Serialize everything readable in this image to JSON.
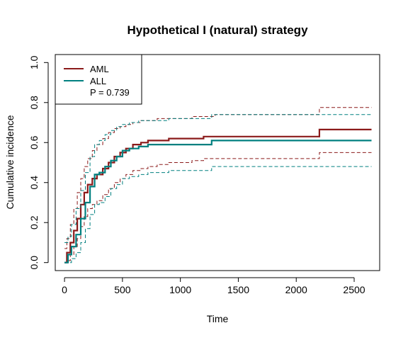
{
  "chart_data": {
    "type": "line",
    "title": "Hypothetical I (natural) strategy",
    "xlabel": "Time",
    "ylabel": "Cumulative incidence",
    "xlim": [
      -80,
      2720
    ],
    "ylim": [
      -0.04,
      1.04
    ],
    "x_ticks": [
      0,
      500,
      1000,
      1500,
      2000,
      2500
    ],
    "y_ticks": [
      0.0,
      0.2,
      0.4,
      0.6,
      0.8,
      1.0
    ],
    "x_tick_labels": [
      "0",
      "500",
      "1000",
      "1500",
      "2000",
      "2500"
    ],
    "y_tick_labels": [
      "0.0",
      "0.2",
      "0.4",
      "0.6",
      "0.8",
      "1.0"
    ],
    "legend": {
      "placement": "top-left",
      "entries": [
        {
          "label": "AML",
          "color": "#8B1A1A"
        },
        {
          "label": "ALL",
          "color": "#008080"
        }
      ],
      "pvalue": "P = 0.739"
    },
    "series": [
      {
        "name": "AML",
        "color": "#8B1A1A",
        "style": "solid",
        "x": [
          0,
          20,
          50,
          80,
          110,
          140,
          170,
          200,
          240,
          280,
          330,
          380,
          430,
          480,
          530,
          590,
          660,
          720,
          800,
          900,
          1100,
          1200,
          1300,
          2200,
          2650
        ],
        "y": [
          0.0,
          0.05,
          0.1,
          0.16,
          0.22,
          0.29,
          0.35,
          0.39,
          0.42,
          0.44,
          0.47,
          0.5,
          0.53,
          0.55,
          0.57,
          0.59,
          0.6,
          0.61,
          0.61,
          0.62,
          0.62,
          0.63,
          0.63,
          0.665,
          0.665
        ]
      },
      {
        "name": "",
        "color": "#8B1A1A",
        "style": "dashed",
        "x": [
          0,
          20,
          50,
          80,
          110,
          140,
          170,
          200,
          240,
          280,
          330,
          380,
          430,
          480,
          530,
          590,
          660,
          720,
          800,
          900,
          1100,
          1200,
          1300,
          2200,
          2650
        ],
        "y": [
          0.07,
          0.12,
          0.19,
          0.27,
          0.35,
          0.42,
          0.48,
          0.52,
          0.56,
          0.59,
          0.62,
          0.65,
          0.67,
          0.68,
          0.69,
          0.7,
          0.71,
          0.71,
          0.72,
          0.72,
          0.73,
          0.73,
          0.74,
          0.775,
          0.775
        ]
      },
      {
        "name": "",
        "color": "#8B1A1A",
        "style": "dashed",
        "x": [
          0,
          20,
          50,
          80,
          110,
          140,
          170,
          200,
          240,
          280,
          330,
          380,
          430,
          480,
          530,
          590,
          660,
          720,
          800,
          900,
          1100,
          1200,
          1300,
          2200,
          2650
        ],
        "y": [
          0.0,
          0.01,
          0.04,
          0.08,
          0.12,
          0.18,
          0.23,
          0.27,
          0.29,
          0.31,
          0.34,
          0.37,
          0.4,
          0.42,
          0.44,
          0.46,
          0.47,
          0.48,
          0.49,
          0.5,
          0.51,
          0.52,
          0.52,
          0.55,
          0.55
        ]
      },
      {
        "name": "ALL",
        "color": "#008080",
        "style": "solid",
        "x": [
          0,
          30,
          60,
          100,
          140,
          180,
          220,
          260,
          300,
          350,
          400,
          450,
          500,
          560,
          640,
          720,
          900,
          1270,
          2650
        ],
        "y": [
          0.0,
          0.04,
          0.08,
          0.14,
          0.22,
          0.3,
          0.38,
          0.44,
          0.45,
          0.48,
          0.51,
          0.53,
          0.56,
          0.57,
          0.58,
          0.59,
          0.59,
          0.61,
          0.61
        ]
      },
      {
        "name": "",
        "color": "#008080",
        "style": "dashed",
        "x": [
          0,
          30,
          60,
          100,
          140,
          180,
          220,
          260,
          300,
          350,
          400,
          450,
          500,
          560,
          640,
          720,
          900,
          1270,
          2650
        ],
        "y": [
          0.1,
          0.13,
          0.19,
          0.27,
          0.36,
          0.45,
          0.53,
          0.59,
          0.61,
          0.64,
          0.66,
          0.68,
          0.69,
          0.7,
          0.71,
          0.71,
          0.72,
          0.74,
          0.74
        ]
      },
      {
        "name": "",
        "color": "#008080",
        "style": "dashed",
        "x": [
          0,
          30,
          60,
          100,
          140,
          180,
          220,
          260,
          300,
          350,
          400,
          450,
          500,
          560,
          640,
          720,
          900,
          1270,
          2650
        ],
        "y": [
          0.0,
          0.0,
          0.02,
          0.05,
          0.1,
          0.17,
          0.24,
          0.29,
          0.3,
          0.33,
          0.37,
          0.39,
          0.42,
          0.43,
          0.44,
          0.45,
          0.46,
          0.48,
          0.48
        ]
      }
    ]
  }
}
